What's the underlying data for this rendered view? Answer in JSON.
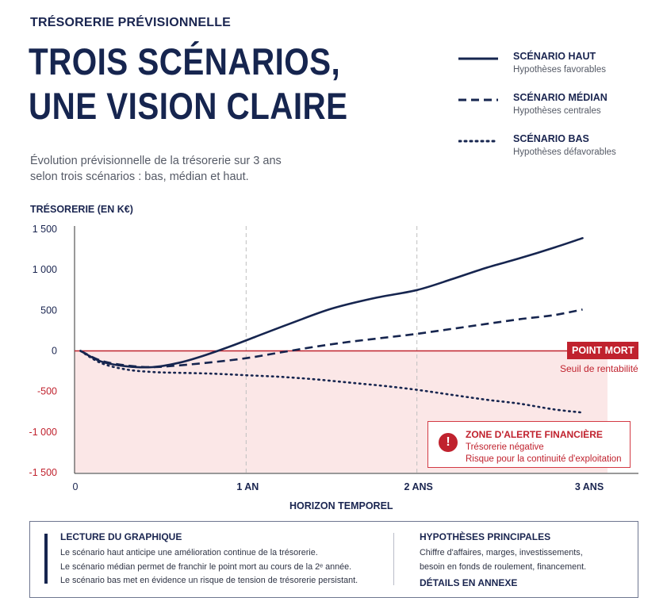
{
  "header": {
    "eyebrow": "TRÉSORERIE PRÉVISIONNELLE",
    "title_line1": "TROIS SCÉNARIOS,",
    "title_line2": "UNE VISION CLAIRE",
    "subtitle_line1": "Évolution prévisionnelle de la trésorerie sur 3 ans",
    "subtitle_line2": "selon trois scénarios : bas, médian et haut."
  },
  "legend": [
    {
      "name": "SCÉNARIO HAUT",
      "desc": "Hypothèses favorables",
      "style": "solid"
    },
    {
      "name": "SCÉNARIO MÉDIAN",
      "desc": "Hypothèses centrales",
      "style": "dashed"
    },
    {
      "name": "SCÉNARIO BAS",
      "desc": "Hypothèses défavorables",
      "style": "dotted"
    }
  ],
  "colors": {
    "navy": "#16254f",
    "alert_red": "#c0222e",
    "alert_zone": "#fbe7e7",
    "grid_dash": "#bfbfbf"
  },
  "breakeven": {
    "tag": "POINT MORT",
    "subtitle": "Seuil de rentabilité"
  },
  "alert": {
    "icon": "exclamation-icon",
    "title": "ZONE D'ALERTE FINANCIÈRE",
    "line1": "Trésorerie négative",
    "line2": "Risque pour la continuité d'exploitation"
  },
  "reading": {
    "title": "LECTURE DU GRAPHIQUE",
    "line1": "Le scénario haut anticipe une amélioration continue de la trésorerie.",
    "line2": "Le scénario médian permet de franchir le point mort au cours de la 2ᵉ année.",
    "line3": "Le scénario bas met en évidence un risque de tension de trésorerie persistant."
  },
  "hypotheses": {
    "title": "HYPOTHÈSES PRINCIPALES",
    "line1": "Chiffre d'affaires, marges, investissements,",
    "line2": "besoin en fonds de roulement, financement.",
    "annex": "DÉTAILS EN ANNEXE"
  },
  "chart_data": {
    "type": "line",
    "title": "",
    "ylabel": "TRÉSORERIE (EN K€)",
    "xlabel": "HORIZON TEMPOREL",
    "ylim": [
      -1500,
      1500
    ],
    "xlim": [
      0,
      3
    ],
    "yticks": [
      1500,
      1000,
      500,
      0,
      -500,
      -1000,
      -1500
    ],
    "ytick_labels": [
      "1 500",
      "1 000",
      "500",
      "0",
      "-500",
      "-1 000",
      "-1 500"
    ],
    "xticks": [
      0,
      1,
      2,
      3
    ],
    "xtick_labels": [
      "0",
      "1 AN",
      "2 ANS",
      "3 ANS"
    ],
    "vertical_gridlines_at": [
      1,
      2
    ],
    "negative_zone": true,
    "series": [
      {
        "name": "SCÉNARIO HAUT",
        "style": "solid",
        "x": [
          0.03,
          0.15,
          0.3,
          0.45,
          0.6,
          0.75,
          0.9,
          1.05,
          1.25,
          1.5,
          1.75,
          2.0,
          2.2,
          2.4,
          2.6,
          2.8,
          2.97
        ],
        "y": [
          0,
          -130,
          -190,
          -200,
          -150,
          -60,
          50,
          170,
          330,
          520,
          650,
          750,
          880,
          1020,
          1140,
          1270,
          1390
        ]
      },
      {
        "name": "SCÉNARIO MÉDIAN",
        "style": "dashed",
        "x": [
          0.03,
          0.15,
          0.3,
          0.45,
          0.6,
          0.8,
          1.0,
          1.2,
          1.4,
          1.6,
          1.8,
          2.0,
          2.2,
          2.4,
          2.6,
          2.8,
          2.97
        ],
        "y": [
          0,
          -120,
          -180,
          -200,
          -180,
          -140,
          -90,
          -20,
          50,
          110,
          160,
          210,
          270,
          330,
          390,
          440,
          510
        ]
      },
      {
        "name": "SCÉNARIO BAS",
        "style": "dotted",
        "x": [
          0.03,
          0.15,
          0.3,
          0.45,
          0.6,
          0.8,
          1.0,
          1.2,
          1.4,
          1.6,
          1.8,
          2.0,
          2.2,
          2.4,
          2.6,
          2.8,
          2.97
        ],
        "y": [
          0,
          -150,
          -230,
          -260,
          -270,
          -280,
          -300,
          -320,
          -350,
          -390,
          -430,
          -480,
          -540,
          -600,
          -650,
          -720,
          -760
        ]
      }
    ]
  }
}
